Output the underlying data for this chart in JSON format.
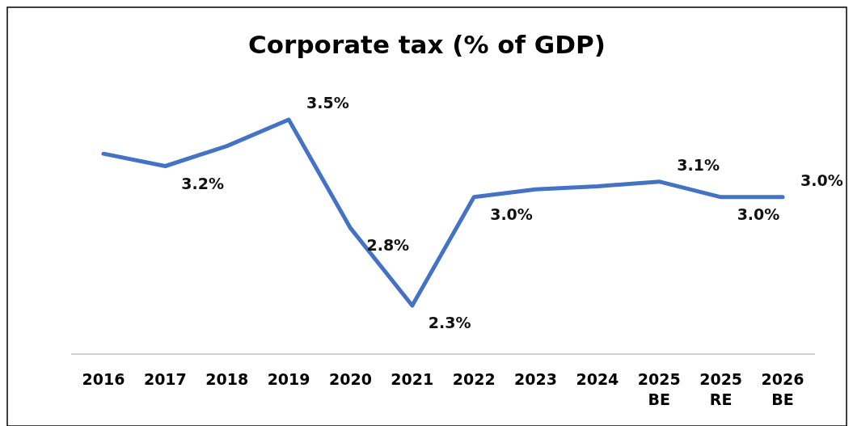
{
  "chart_data": {
    "type": "line",
    "title": "Corporate tax (% of GDP)",
    "categories": [
      "2016",
      "2017",
      "2018",
      "2019",
      "2020",
      "2021",
      "2022",
      "2023",
      "2024",
      "2025 BE",
      "2025 RE",
      "2026 BE"
    ],
    "series": [
      {
        "color": "#4472c4",
        "values": [
          3.28,
          3.2,
          3.33,
          3.5,
          2.8,
          2.3,
          3.0,
          3.05,
          3.07,
          3.1,
          3.0,
          3.0
        ],
        "value_labels": [
          null,
          "3.2%",
          null,
          "3.5%",
          "2.8%",
          "2.3%",
          "3.0%",
          null,
          null,
          "3.1%",
          "3.0%",
          "3.0%"
        ]
      }
    ],
    "tick_labels": "x",
    "marker": "none",
    "line_style": "solid"
  }
}
